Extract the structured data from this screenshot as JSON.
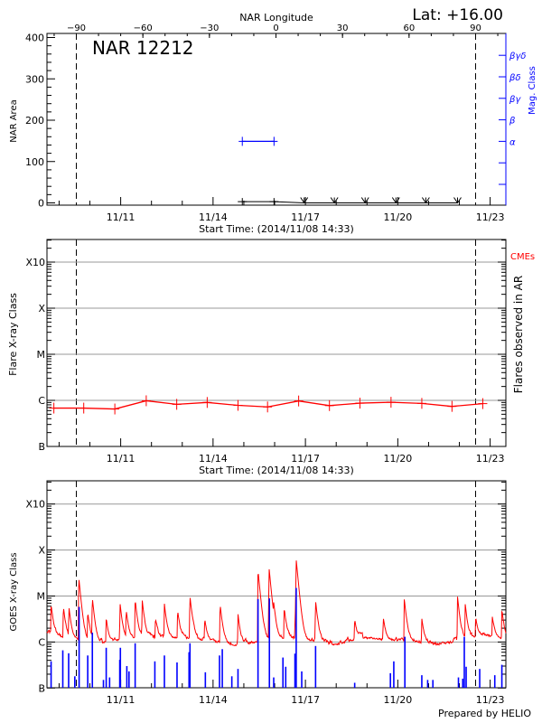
{
  "header": {
    "lat_label": "Lat: +16.00",
    "region_label": "NAR 12212",
    "footer": "Prepared by HELIO"
  },
  "chart_data": [
    {
      "type": "line",
      "title": "NAR 12212",
      "xlabel": "Start Time: (2014/11/08 14:33)",
      "ylabel": "NAR Area",
      "top_xlabel": "NAR Longitude",
      "right_ylabel": "Mag. Class",
      "x_range_nov_day": [
        8.606,
        23.51
      ],
      "ylim": [
        -5,
        410
      ],
      "y_ticks": [
        0,
        100,
        200,
        300,
        400
      ],
      "x_tick_labels": [
        "11/11",
        "11/14",
        "11/17",
        "11/20",
        "11/23"
      ],
      "longitude_ticks": [
        -90,
        -60,
        -30,
        0,
        30,
        60,
        90
      ],
      "limb_lines_longitude": [
        -90,
        90
      ],
      "mag_class_ticks": [
        "",
        "",
        "α",
        "β",
        "βγ",
        "βδ",
        "βγδ"
      ],
      "area_series": {
        "color": "#000000",
        "points": [
          [
            14.95,
            3
          ],
          [
            15.98,
            3
          ],
          [
            16.96,
            0
          ],
          [
            17.94,
            0
          ],
          [
            18.94,
            0
          ],
          [
            19.94,
            0
          ],
          [
            20.91,
            0
          ],
          [
            21.94,
            0
          ]
        ]
      },
      "mag_class_series": {
        "color": "#0000ff",
        "points": [
          [
            14.95,
            "α"
          ],
          [
            15.98,
            "α"
          ]
        ]
      }
    },
    {
      "type": "line",
      "xlabel": "Start Time: (2014/11/08 14:33)",
      "ylabel": "Flare X-ray Class",
      "right_ylabel": "Flares observed in AR",
      "right_legend": "CMEs",
      "y_tick_labels": [
        "B",
        "C",
        "M",
        "X",
        "X10"
      ],
      "grid": true,
      "color": "#ff0000",
      "points": [
        [
          8.83,
          "B6.8"
        ],
        [
          9.8,
          "B6.8"
        ],
        [
          10.81,
          "B6.5"
        ],
        [
          11.83,
          "B9.8"
        ],
        [
          12.82,
          "B8.2"
        ],
        [
          13.81,
          "B9.0"
        ],
        [
          14.81,
          "B7.8"
        ],
        [
          15.77,
          "B7.2"
        ],
        [
          16.78,
          "B9.7"
        ],
        [
          17.78,
          "B7.7"
        ],
        [
          18.77,
          "B8.7"
        ],
        [
          19.78,
          "B9.1"
        ],
        [
          20.78,
          "B8.6"
        ],
        [
          21.76,
          "B7.4"
        ],
        [
          22.76,
          "B8.5"
        ]
      ]
    },
    {
      "type": "line",
      "ylabel": "GOES X-ray Class",
      "y_tick_labels": [
        "B",
        "C",
        "M",
        "X",
        "X10"
      ],
      "grid": true,
      "long_channel": {
        "color": "#ff0000",
        "background": [
          [
            8.6,
            "C1.6"
          ],
          [
            9.3,
            "C1.1"
          ],
          [
            10.3,
            "B9.0"
          ],
          [
            11.0,
            "C1.1"
          ],
          [
            12.0,
            "C1.2"
          ],
          [
            13.0,
            "C1.2"
          ],
          [
            14.0,
            "C1.0"
          ],
          [
            14.8,
            "B8.0"
          ],
          [
            15.5,
            "C1.0"
          ],
          [
            16.5,
            "C1.2"
          ],
          [
            17.2,
            "C1.0"
          ],
          [
            18.0,
            "B8.5"
          ],
          [
            18.8,
            "C1.2"
          ],
          [
            19.5,
            "C1.1"
          ],
          [
            20.5,
            "C1.0"
          ],
          [
            21.3,
            "B8.5"
          ],
          [
            22.0,
            "C1.0"
          ],
          [
            22.8,
            "C1.4"
          ],
          [
            23.51,
            "C1.1"
          ]
        ],
        "peaks": [
          [
            8.74,
            "C4.7"
          ],
          [
            9.14,
            "C4.6"
          ],
          [
            9.32,
            "C4.4"
          ],
          [
            9.64,
            "M2.4"
          ],
          [
            9.93,
            "C3.2"
          ],
          [
            10.08,
            "C7.7"
          ],
          [
            10.53,
            "C2.2"
          ],
          [
            10.98,
            "C5.6"
          ],
          [
            11.18,
            "C3.6"
          ],
          [
            11.47,
            "C7.2"
          ],
          [
            11.7,
            "C6.7"
          ],
          [
            12.13,
            "C2.0"
          ],
          [
            12.42,
            "C5.3"
          ],
          [
            12.85,
            "C3.6"
          ],
          [
            13.25,
            "C8.7"
          ],
          [
            13.73,
            "C2.1"
          ],
          [
            14.23,
            "C5.6"
          ],
          [
            14.81,
            "C3.2"
          ],
          [
            15.46,
            "M3.5"
          ],
          [
            15.82,
            "M3.9"
          ],
          [
            15.97,
            "C2.9"
          ],
          [
            16.31,
            "C4.3"
          ],
          [
            16.67,
            "C3.6"
          ],
          [
            16.7,
            "M5.9"
          ],
          [
            17.33,
            "C6.7"
          ],
          [
            18.6,
            "C2.0"
          ],
          [
            19.53,
            "C2.2"
          ],
          [
            20.21,
            "C7.7"
          ],
          [
            20.78,
            "C2.3"
          ],
          [
            21.94,
            "C8.7"
          ],
          [
            22.19,
            "C5.3"
          ],
          [
            22.53,
            "C2.1"
          ],
          [
            23.07,
            "C2.2"
          ],
          [
            23.38,
            "C3.8"
          ]
        ]
      },
      "short_channel": {
        "color": "#0000ff",
        "peaks": [
          [
            8.74,
            "B3.8"
          ],
          [
            9.12,
            "B6.6"
          ],
          [
            9.31,
            "B5.7"
          ],
          [
            9.51,
            "B1.8"
          ],
          [
            9.65,
            "C5.8"
          ],
          [
            9.93,
            "B5.1"
          ],
          [
            10.08,
            "C1.6"
          ],
          [
            10.44,
            "B1.5"
          ],
          [
            10.53,
            "B7.5"
          ],
          [
            10.64,
            "B1.7"
          ],
          [
            10.97,
            "B4.1"
          ],
          [
            10.99,
            "B7.5"
          ],
          [
            11.2,
            "B3.0"
          ],
          [
            11.27,
            "B2.3"
          ],
          [
            11.47,
            "B9.4"
          ],
          [
            12.11,
            "B3.8"
          ],
          [
            12.42,
            "B5.1"
          ],
          [
            12.83,
            "B3.6"
          ],
          [
            13.22,
            "B6.0"
          ],
          [
            13.25,
            "B9.4"
          ],
          [
            13.75,
            "B2.2"
          ],
          [
            14.21,
            "B5.1"
          ],
          [
            14.3,
            "B7.0"
          ],
          [
            14.61,
            "B1.8"
          ],
          [
            14.81,
            "B2.6"
          ],
          [
            15.46,
            "C8.6"
          ],
          [
            15.83,
            "C8.9"
          ],
          [
            15.97,
            "B1.7"
          ],
          [
            16.27,
            "B4.6"
          ],
          [
            16.36,
            "B2.9"
          ],
          [
            16.66,
            "B5.6"
          ],
          [
            16.7,
            "M1.5"
          ],
          [
            16.88,
            "B2.3"
          ],
          [
            17.33,
            "B8.2"
          ],
          [
            18.6,
            "B1.3"
          ],
          [
            19.76,
            "B2.1"
          ],
          [
            19.87,
            "B3.8"
          ],
          [
            20.23,
            "C1.3"
          ],
          [
            20.78,
            "B1.9"
          ],
          [
            20.97,
            "B1.5"
          ],
          [
            21.14,
            "B1.5"
          ],
          [
            21.97,
            "B1.7"
          ],
          [
            22.11,
            "B1.6"
          ],
          [
            22.16,
            "C1.3"
          ],
          [
            22.22,
            "B2.9"
          ],
          [
            22.66,
            "B2.6"
          ],
          [
            23.15,
            "B1.9"
          ],
          [
            23.38,
            "B3.2"
          ]
        ]
      },
      "x_tick_labels": [
        "11/11",
        "11/14",
        "11/17",
        "11/20",
        "11/23"
      ]
    }
  ]
}
